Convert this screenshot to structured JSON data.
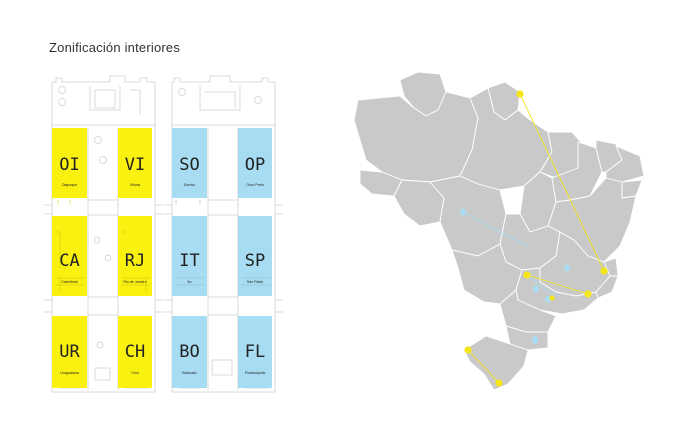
{
  "title": "Zonificación interiores",
  "colors": {
    "yellow_zone": "#fbf111",
    "blue_zone": "#a7dcf2",
    "country_fill": "#c9c9c9",
    "country_stroke": "#ffffff",
    "route_yellow": "#f5e61a",
    "route_blue": "#a7dcf2",
    "plan_line": "#cfcfcf"
  },
  "plan_left": {
    "zones": [
      {
        "code": "OI",
        "name": "Oiapoque"
      },
      {
        "code": "VI",
        "name": "Vitória"
      },
      {
        "code": "CA",
        "name": "Caledônia"
      },
      {
        "code": "RJ",
        "name": "Rio de Janeiro"
      },
      {
        "code": "UR",
        "name": "Uruguaiana"
      },
      {
        "code": "CH",
        "name": "Chuí"
      }
    ]
  },
  "plan_right": {
    "zones": [
      {
        "code": "SO",
        "name": "Sorriso"
      },
      {
        "code": "OP",
        "name": "Ouro Preto"
      },
      {
        "code": "IT",
        "name": "Itu"
      },
      {
        "code": "SP",
        "name": "San Pablo"
      },
      {
        "code": "BO",
        "name": "Botucatu"
      },
      {
        "code": "FL",
        "name": "Florianópolis"
      }
    ]
  },
  "map": {
    "yellow_points": [
      "oiapoque",
      "vitoria",
      "rio-de-janeiro",
      "caledonia",
      "uruguaiana",
      "chui",
      "sao-paulo"
    ],
    "blue_points": [
      "sorriso",
      "ouro-preto",
      "itu",
      "botucatu",
      "florianopolis"
    ]
  }
}
